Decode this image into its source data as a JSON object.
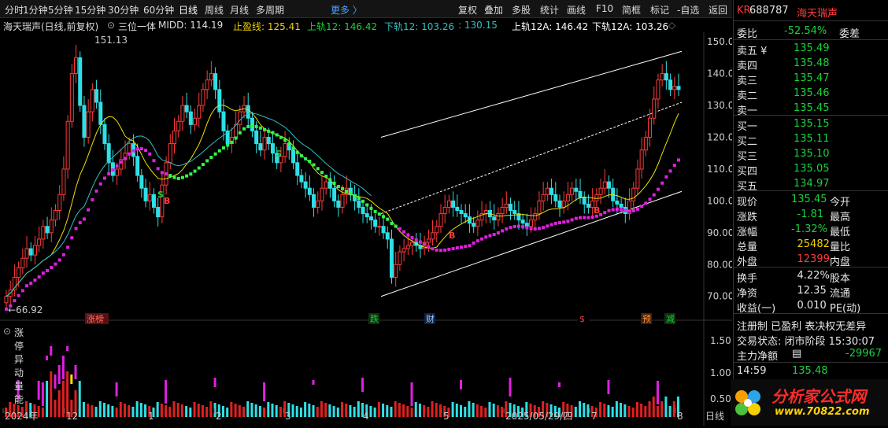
{
  "toolbar": {
    "periods": [
      "分时",
      "1分钟",
      "5分钟",
      "15分钟",
      "30分钟",
      "60分钟",
      "日线",
      "周线",
      "月线",
      "多周期"
    ],
    "more": "更多",
    "tools": [
      "复权",
      "叠加",
      "多股",
      "统计",
      "画线",
      "F10",
      "简框",
      "标记",
      "-自选",
      "返回"
    ]
  },
  "chart_header": {
    "stock": "海天瑞声(日线,前复权)",
    "indicator": "三位一体",
    "midd": "MIDD: 114.19",
    "stop": "止盈线: 125.41",
    "upper12": "上轨12: 146.42",
    "lower12": "下轨12: 103.26",
    "mid": ": 130.15",
    "upper12a": "上轨12A: 146.42",
    "lower12a": "下轨12A: 103.26"
  },
  "price_axis": [
    "150.00",
    "140.00",
    "130.00",
    "120.00",
    "110.00",
    "100.00",
    "90.00",
    "80.00",
    "70.00"
  ],
  "annotations": {
    "high": "151.13",
    "low": "66.92"
  },
  "event_labels": [
    "涨榜",
    "跌",
    "财",
    "$",
    "预",
    "减"
  ],
  "signals": [
    "S",
    "B",
    "S",
    "B",
    "B"
  ],
  "vol_header": "涨停异动量能",
  "vol_axis": [
    "1.50",
    "1.00",
    "0.50"
  ],
  "date_axis": [
    "2024年",
    "12",
    "1",
    "2",
    "3",
    "4",
    "5",
    "2025/05/29/四",
    "7",
    "8"
  ],
  "date_unit": "日线",
  "quote": {
    "code_prefix": "KR",
    "code": "688787",
    "name": "海天瑞声",
    "wei_bi_label": "委比",
    "wei_bi": "-52.54%",
    "wei_cha_label": "委差",
    "asks": [
      {
        "label": "卖五 ¥",
        "price": "135.49"
      },
      {
        "label": "卖四",
        "price": "135.48"
      },
      {
        "label": "卖三",
        "price": "135.47"
      },
      {
        "label": "卖二",
        "price": "135.46"
      },
      {
        "label": "卖一",
        "price": "135.45"
      }
    ],
    "bids": [
      {
        "label": "买一",
        "price": "135.15"
      },
      {
        "label": "买二",
        "price": "135.11"
      },
      {
        "label": "买三",
        "price": "135.10"
      },
      {
        "label": "买四",
        "price": "135.05"
      },
      {
        "label": "买五",
        "price": "134.97"
      }
    ],
    "stats": [
      {
        "label": "现价",
        "value": "135.45",
        "label2": "今开"
      },
      {
        "label": "涨跌",
        "value": "-1.81",
        "label2": "最高"
      },
      {
        "label": "涨幅",
        "value": "-1.32%",
        "label2": "最低"
      },
      {
        "label": "总量",
        "value": "25482",
        "label2": "量比"
      },
      {
        "label": "外盘",
        "value": "12399",
        "label2": "内盘"
      }
    ],
    "stats2": [
      {
        "label": "换手",
        "value": "4.22%",
        "label2": "股本"
      },
      {
        "label": "净资",
        "value": "12.35",
        "label2": "流通"
      },
      {
        "label": "收益(一)",
        "value": "0.010",
        "label2": "PE(动)"
      }
    ],
    "tags": "注册制 已盈利 表决权无差异",
    "status": "交易状态: 闭市阶段 15:30:07",
    "net_label": "主力净额",
    "net_value": "-29967",
    "tick_time": "14:59",
    "tick_price": "135.48"
  },
  "logo": {
    "title": "分析家公式网",
    "url": "www.70822.com"
  },
  "chart_data": {
    "type": "candlestick",
    "price_range": [
      64,
      153
    ],
    "closes": [
      70,
      72,
      76,
      79,
      82,
      85,
      83,
      86,
      88,
      92,
      90,
      94,
      97,
      102,
      110,
      125,
      140,
      145,
      130,
      120,
      128,
      135,
      131,
      124,
      118,
      112,
      108,
      110,
      113,
      115,
      118,
      114,
      108,
      104,
      100,
      102,
      98,
      95,
      105,
      112,
      118,
      122,
      125,
      130,
      128,
      124,
      126,
      130,
      135,
      138,
      140,
      135,
      128,
      122,
      118,
      120,
      124,
      128,
      130,
      126,
      122,
      118,
      116,
      120,
      118,
      115,
      112,
      114,
      118,
      116,
      112,
      108,
      106,
      104,
      102,
      98,
      100,
      104,
      106,
      104,
      100,
      98,
      102,
      104,
      102,
      100,
      98,
      96,
      95,
      94,
      92,
      92,
      90,
      88,
      76,
      80,
      84,
      85,
      86,
      87,
      86,
      85,
      87,
      88,
      90,
      92,
      96,
      98,
      100,
      98,
      97,
      96,
      95,
      93,
      92,
      94,
      96,
      97,
      95,
      94,
      96,
      98,
      99,
      97,
      96,
      94,
      93,
      92,
      94,
      96,
      100,
      102,
      104,
      102,
      100,
      98,
      100,
      102,
      104,
      103,
      101,
      99,
      98,
      100,
      102,
      104,
      106,
      104,
      100,
      99,
      98,
      96,
      100,
      104,
      110,
      116,
      120,
      126,
      132,
      138,
      140,
      138,
      135,
      136,
      135
    ]
  }
}
